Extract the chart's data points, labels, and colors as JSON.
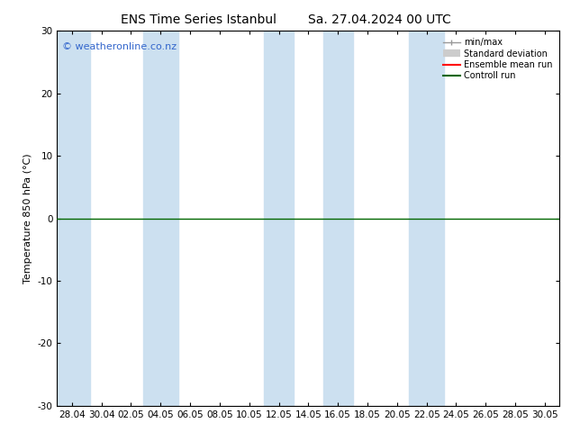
{
  "title": "ENS Time Series Istanbul",
  "title2": "Sa. 27.04.2024 00 UTC",
  "ylabel": "Temperature 850 hPa (°C)",
  "ylim": [
    -30,
    30
  ],
  "yticks": [
    -30,
    -20,
    -10,
    0,
    10,
    20,
    30
  ],
  "watermark": "© weatheronline.co.nz",
  "legend_labels": [
    "min/max",
    "Standard deviation",
    "Ensemble mean run",
    "Controll run"
  ],
  "legend_colors_line": [
    "#aaaaaa",
    "#cccccc",
    "#ff0000",
    "#007700"
  ],
  "background_color": "#ffffff",
  "band_color": "#cce0f0",
  "xtick_labels": [
    "28.04",
    "30.04",
    "02.05",
    "04.05",
    "06.05",
    "08.05",
    "10.05",
    "12.05",
    "14.05",
    "16.05",
    "18.05",
    "20.05",
    "22.05",
    "24.05",
    "26.05",
    "28.05",
    "30.05"
  ],
  "blue_band_centers_idx": [
    0,
    3,
    7,
    9,
    12
  ],
  "blue_band_widths_idx": [
    1.2,
    1.2,
    1.0,
    1.0,
    1.2
  ],
  "zero_line_color": "#006600",
  "title_fontsize": 10,
  "axis_fontsize": 8,
  "tick_fontsize": 7.5,
  "watermark_color": "#3366cc",
  "watermark_fontsize": 8
}
